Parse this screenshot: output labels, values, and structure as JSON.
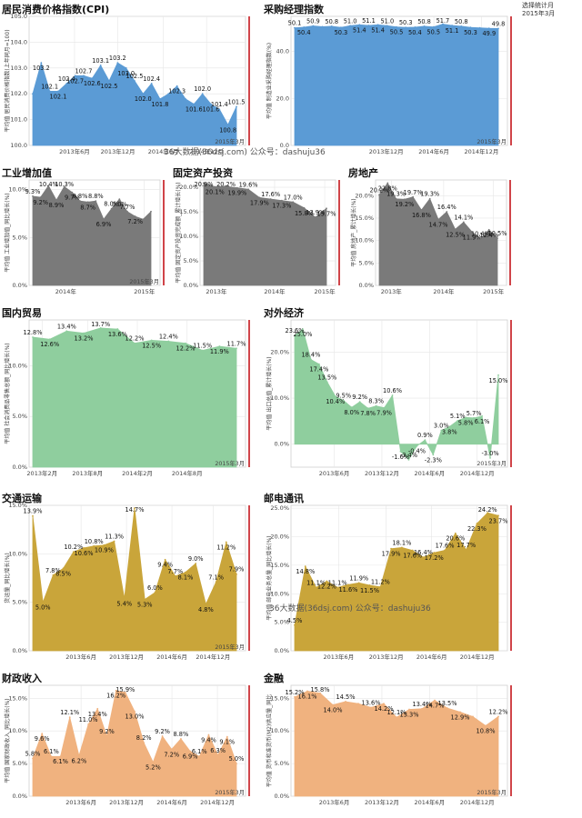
{
  "page": {
    "corner_note_line1": "选择统计月",
    "corner_note_line2": "2015年3月",
    "watermark_text": "36大数据(36dsj.com) 公众号：dashuju36"
  },
  "chart_data": [
    {
      "id": "cpi",
      "type": "area",
      "title": "居民消费价格指数(CPI)",
      "ylabel": "平均值 居民消费价格指数(上年同月=100)",
      "color": "#5b9bd5",
      "ylim": [
        100,
        105
      ],
      "yticks": [
        "100.0",
        "101.0",
        "102.0",
        "103.0",
        "104.0",
        "105.0"
      ],
      "ytick_values": [
        100,
        101,
        102,
        103,
        104,
        105
      ],
      "xticks": [
        {
          "label": "2013年6月",
          "pos": 0.21
        },
        {
          "label": "2013年12月",
          "pos": 0.41
        },
        {
          "label": "2014年6月",
          "pos": 0.62
        },
        {
          "label": "2014年12月",
          "pos": 0.82
        }
      ],
      "values": [
        102.0,
        103.2,
        102.1,
        102.1,
        102.4,
        102.7,
        102.7,
        102.6,
        103.1,
        102.5,
        103.2,
        103.0,
        102.5,
        102.0,
        102.4,
        101.8,
        102.0,
        102.3,
        101.8,
        101.6,
        102.0,
        101.6,
        101.4,
        100.8,
        101.5
      ],
      "labels": [
        "",
        "103.2",
        "102.1",
        "102.1",
        "102.4",
        "102.7",
        "102.7",
        "102.6",
        "103.1",
        "102.5",
        "103.2",
        "103.0",
        "102.5",
        "102.0",
        "102.4",
        "101.8",
        "",
        "102.3",
        "",
        "101.6",
        "102.0",
        "101.6",
        "101.4",
        "100.8",
        "101.5"
      ],
      "stamp": "2015年3月"
    },
    {
      "id": "pmi",
      "type": "area",
      "title": "采购经理指数",
      "ylabel": "平均值 制造业采购经理指数(%)",
      "color": "#5b9bd5",
      "ylim": [
        0,
        55
      ],
      "yticks": [
        "0.0",
        "20.0",
        "40.0"
      ],
      "ytick_values": [
        0,
        20,
        40
      ],
      "xticks": [
        {
          "label": "2013年12月",
          "pos": 0.44
        },
        {
          "label": "2014年6月",
          "pos": 0.66
        },
        {
          "label": "2014年12月",
          "pos": 0.88
        }
      ],
      "values": [
        50.1,
        50.4,
        50.9,
        50.6,
        50.8,
        50.3,
        51.0,
        51.4,
        51.1,
        51.4,
        51.0,
        50.5,
        50.3,
        50.4,
        50.8,
        50.5,
        51.7,
        51.1,
        50.8,
        50.3,
        50.1,
        49.9,
        49.8
      ],
      "labels": [
        "50.1",
        "50.4",
        "50.9",
        "",
        "50.8",
        "50.3",
        "51.0",
        "51.4",
        "51.1",
        "51.4",
        "51.0",
        "50.5",
        "50.3",
        "50.4",
        "50.8",
        "50.5",
        "51.7",
        "51.1",
        "50.8",
        "50.3",
        "",
        "49.9",
        "49.8"
      ],
      "stamp": "2015年3月"
    },
    {
      "id": "industry",
      "type": "area",
      "title": "工业增加值",
      "ylabel": "平均值 工业增加值_同比增长(%)",
      "color": "#7a7a7a",
      "ylim": [
        0,
        11
      ],
      "yticks": [
        "0.0%",
        "5.0%",
        "10.0%"
      ],
      "ytick_values": [
        0,
        5,
        10
      ],
      "xticks": [
        {
          "label": "2014年",
          "pos": 0.28
        },
        {
          "label": "2015年",
          "pos": 0.88
        }
      ],
      "values": [
        9.3,
        9.2,
        10.4,
        8.9,
        10.3,
        9.7,
        8.8,
        8.7,
        8.8,
        6.9,
        8.0,
        9.0,
        7.7,
        7.2,
        6.9,
        7.7
      ],
      "labels": [
        "9.3%",
        "9.2%",
        "10.4%",
        "8.9%",
        "10.3%",
        "9.7%",
        "8.8%",
        "8.7%",
        "8.8%",
        "6.9%",
        "8.0%",
        "9.0%",
        "7.7%",
        "7.2%",
        "",
        ""
      ],
      "stamp": "2015年3月"
    },
    {
      "id": "fixed_asset",
      "type": "area",
      "title": "固定资产投资",
      "ylabel": "平均值 固定资产投资完成额_累计增长(%)",
      "color": "#7a7a7a",
      "ylim": [
        0,
        21.5
      ],
      "yticks": [
        "0.0%",
        "5.0%",
        "10.0%",
        "15.0%",
        "20.0%"
      ],
      "ytick_values": [
        0,
        5,
        10,
        15,
        20
      ],
      "xticks": [
        {
          "label": "2013年",
          "pos": 0.12
        },
        {
          "label": "2014年",
          "pos": 0.55
        },
        {
          "label": "2015年",
          "pos": 0.92
        }
      ],
      "values": [
        20.9,
        20.1,
        20.2,
        19.9,
        19.6,
        17.9,
        17.6,
        17.3,
        17.0,
        15.8,
        13.9,
        15.7
      ],
      "labels": [
        "20.9%",
        "20.1%",
        "20.2%",
        "19.9%",
        "19.6%",
        "17.9%",
        "17.6%",
        "17.3%",
        "17.0%",
        "15.8%",
        "13.9%",
        "15.7%"
      ],
      "stamp": ""
    },
    {
      "id": "real_estate",
      "type": "area",
      "title": "房地产",
      "ylabel": "平均值 房地产_累计增长(%)",
      "color": "#7a7a7a",
      "ylim": [
        0,
        23.5
      ],
      "yticks": [
        "0.0%",
        "5.0%",
        "10.0%",
        "15.0%",
        "20.0%"
      ],
      "ytick_values": [
        0,
        5,
        10,
        15,
        20
      ],
      "xticks": [
        {
          "label": "2013年",
          "pos": 0.12
        },
        {
          "label": "2014年",
          "pos": 0.52
        },
        {
          "label": "2015年",
          "pos": 0.9
        }
      ],
      "values": [
        20.2,
        22.8,
        19.3,
        19.2,
        19.7,
        16.8,
        19.3,
        14.7,
        16.4,
        12.5,
        14.1,
        11.9,
        10.4,
        12.4,
        10.5
      ],
      "labels": [
        "20.2%",
        "22.8%",
        "19.3%",
        "19.2%",
        "19.7%",
        "16.8%",
        "19.3%",
        "14.7%",
        "16.4%",
        "12.5%",
        "14.1%",
        "11.9%",
        "10.4%",
        "12.4%",
        "10.5%"
      ],
      "stamp": ""
    },
    {
      "id": "domestic_trade",
      "type": "area",
      "title": "国内贸易",
      "ylabel": "平均值 社会消费品零售总额_同比增长(%)",
      "color": "#8fce9e",
      "ylim": [
        0,
        14.5
      ],
      "yticks": [
        "0.0%",
        "5.0%",
        "10.0%"
      ],
      "ytick_values": [
        0,
        5,
        10
      ],
      "xticks": [
        {
          "label": "2013年2月",
          "pos": 0.06
        },
        {
          "label": "2013年8月",
          "pos": 0.27
        },
        {
          "label": "2014年2月",
          "pos": 0.5
        },
        {
          "label": "2014年8月",
          "pos": 0.73
        }
      ],
      "values": [
        12.8,
        12.6,
        13.4,
        13.2,
        13.7,
        13.6,
        12.2,
        12.5,
        12.4,
        12.2,
        11.5,
        11.9,
        11.7
      ],
      "labels": [
        "12.8%",
        "12.6%",
        "13.4%",
        "13.2%",
        "13.7%",
        "13.6%",
        "12.2%",
        "12.5%",
        "12.4%",
        "12.2%",
        "11.5%",
        "11.9%",
        "11.7%"
      ],
      "stamp": "2015年3月"
    },
    {
      "id": "foreign_economy",
      "type": "area",
      "title": "对外经济",
      "ylabel": "平均值 出口总值_累计增长(%)",
      "color": "#8fce9e",
      "ylim": [
        -5,
        27
      ],
      "yticks": [
        "0.0%",
        "10.0%",
        "20.0%"
      ],
      "ytick_values": [
        0,
        10,
        20
      ],
      "xticks": [
        {
          "label": "2013年6月",
          "pos": 0.2
        },
        {
          "label": "2013年12月",
          "pos": 0.42
        },
        {
          "label": "2014年6月",
          "pos": 0.64
        },
        {
          "label": "2014年12月",
          "pos": 0.86
        }
      ],
      "values": [
        23.6,
        25.0,
        18.4,
        17.4,
        13.5,
        10.4,
        9.5,
        8.0,
        9.2,
        7.8,
        8.3,
        7.9,
        10.6,
        -1.6,
        -3.4,
        -0.4,
        0.9,
        -2.3,
        3.0,
        3.8,
        5.1,
        5.8,
        5.7,
        6.1,
        -3.0,
        15.0
      ],
      "labels": [
        "23.6%",
        "25.0%",
        "18.4%",
        "17.4%",
        "13.5%",
        "10.4%",
        "9.5%",
        "8.0%",
        "9.2%",
        "7.8%",
        "8.3%",
        "7.9%",
        "10.6%",
        "-1.6%",
        "-3.4%",
        "-0.4%",
        "0.9%",
        "-2.3%",
        "3.0%",
        "3.8%",
        "5.1%",
        "5.8%",
        "5.7%",
        "6.1%",
        "-3.0%",
        "15.0%"
      ],
      "stamp": "2015年3月"
    },
    {
      "id": "transport",
      "type": "area",
      "title": "交通运输",
      "ylabel": "货运量_同比增长(%)",
      "color": "#c9a53a",
      "ylim": [
        0,
        15
      ],
      "yticks": [
        "0.0%",
        "5.0%",
        "10.0%",
        "15.0%"
      ],
      "ytick_values": [
        0,
        5,
        10,
        15
      ],
      "xticks": [
        {
          "label": "2013年6月",
          "pos": 0.24
        },
        {
          "label": "2013年12月",
          "pos": 0.45
        },
        {
          "label": "2014年6月",
          "pos": 0.66
        },
        {
          "label": "2014年12月",
          "pos": 0.85
        }
      ],
      "values": [
        13.9,
        5.0,
        7.8,
        8.5,
        10.2,
        10.6,
        10.8,
        10.9,
        11.3,
        5.4,
        14.7,
        5.3,
        6.0,
        9.4,
        7.7,
        8.1,
        9.0,
        4.8,
        7.1,
        11.2,
        7.9
      ],
      "labels": [
        "13.9%",
        "5.0%",
        "7.8%",
        "8.5%",
        "10.2%",
        "10.6%",
        "10.8%",
        "10.9%",
        "11.3%",
        "5.4%",
        "14.7%",
        "5.3%",
        "6.0%",
        "9.4%",
        "7.7%",
        "8.1%",
        "9.0%",
        "4.8%",
        "7.1%",
        "11.2%",
        "7.9%"
      ],
      "stamp": "2015年3月"
    },
    {
      "id": "telecom",
      "type": "area",
      "title": "邮电通讯",
      "ylabel": "平均值 邮电业务总量_同比增长(%)",
      "color": "#c9a53a",
      "ylim": [
        0,
        25.5
      ],
      "yticks": [
        "0.0%",
        "5.0%",
        "10.0%",
        "15.0%",
        "20.0%",
        "25.0%"
      ],
      "ytick_values": [
        0,
        5,
        10,
        15,
        20,
        25
      ],
      "xticks": [
        {
          "label": "2013年6月",
          "pos": 0.22
        },
        {
          "label": "2013年12月",
          "pos": 0.44
        },
        {
          "label": "2014年6月",
          "pos": 0.65
        },
        {
          "label": "2014年12月",
          "pos": 0.86
        }
      ],
      "values": [
        4.5,
        14.8,
        11.1,
        12.2,
        11.1,
        11.6,
        11.9,
        11.5,
        11.2,
        17.9,
        18.1,
        17.6,
        16.4,
        17.2,
        17.6,
        20.6,
        17.7,
        22.3,
        24.2,
        23.7
      ],
      "labels": [
        "4.5%",
        "14.8%",
        "11.1%",
        "12.2%",
        "11.1%",
        "11.6%",
        "11.9%",
        "11.5%",
        "11.2%",
        "17.9%",
        "18.1%",
        "17.6%",
        "16.4%",
        "17.2%",
        "17.6%",
        "20.6%",
        "17.7%",
        "22.3%",
        "24.2%",
        "23.7%"
      ],
      "stamp": ""
    },
    {
      "id": "fiscal",
      "type": "area",
      "title": "财政收入",
      "ylabel": "平均值 国家财政收入_同比增长(%)",
      "color": "#f0b27f",
      "ylim": [
        0,
        17
      ],
      "yticks": [
        "0.0%",
        "5.0%",
        "10.0%",
        "15.0%"
      ],
      "ytick_values": [
        0,
        5,
        10,
        15
      ],
      "xticks": [
        {
          "label": "2013年6月",
          "pos": 0.24
        },
        {
          "label": "2013年12月",
          "pos": 0.45
        },
        {
          "label": "2014年6月",
          "pos": 0.66
        },
        {
          "label": "2014年12月",
          "pos": 0.87
        }
      ],
      "values": [
        5.8,
        9.6,
        6.1,
        6.1,
        12.1,
        6.2,
        11.0,
        13.4,
        9.2,
        16.2,
        15.9,
        13.0,
        8.2,
        5.2,
        9.2,
        7.2,
        8.8,
        6.9,
        6.1,
        9.4,
        6.3,
        9.1,
        5.0
      ],
      "labels": [
        "5.8%",
        "9.6%",
        "6.1%",
        "6.1%",
        "12.1%",
        "6.2%",
        "11.0%",
        "13.4%",
        "9.2%",
        "16.2%",
        "15.9%",
        "13.0%",
        "8.2%",
        "5.2%",
        "9.2%",
        "7.2%",
        "8.8%",
        "6.9%",
        "6.1%",
        "9.4%",
        "6.3%",
        "9.1%",
        "5.0%"
      ],
      "stamp": "2015年3月"
    },
    {
      "id": "finance",
      "type": "area",
      "title": "金融",
      "ylabel": "平均值 货币和准货币(M2)供应量_同比",
      "color": "#f0b27f",
      "ylim": [
        0,
        17
      ],
      "yticks": [
        "0.0%",
        "5.0%",
        "10.0%",
        "15.0%"
      ],
      "ytick_values": [
        0,
        5,
        10,
        15
      ],
      "xticks": [
        {
          "label": "2013年6月",
          "pos": 0.2
        },
        {
          "label": "2013年12月",
          "pos": 0.42
        },
        {
          "label": "2014年6月",
          "pos": 0.64
        },
        {
          "label": "2014年12月",
          "pos": 0.86
        }
      ],
      "values": [
        15.2,
        16.1,
        15.8,
        14.0,
        14.5,
        14.2,
        13.6,
        14.2,
        12.1,
        13.3,
        13.4,
        14.7,
        13.5,
        12.9,
        12.2,
        10.8,
        12.2
      ],
      "labels": [
        "15.2%",
        "16.1%",
        "15.8%",
        "14.0%",
        "14.5%",
        "",
        "13.6%",
        "14.2%",
        "12.1%",
        "13.3%",
        "13.4%",
        "14.7%",
        "13.5%",
        "12.9%",
        "",
        "10.8%",
        "12.2%"
      ],
      "stamp": "2015年3月"
    }
  ]
}
